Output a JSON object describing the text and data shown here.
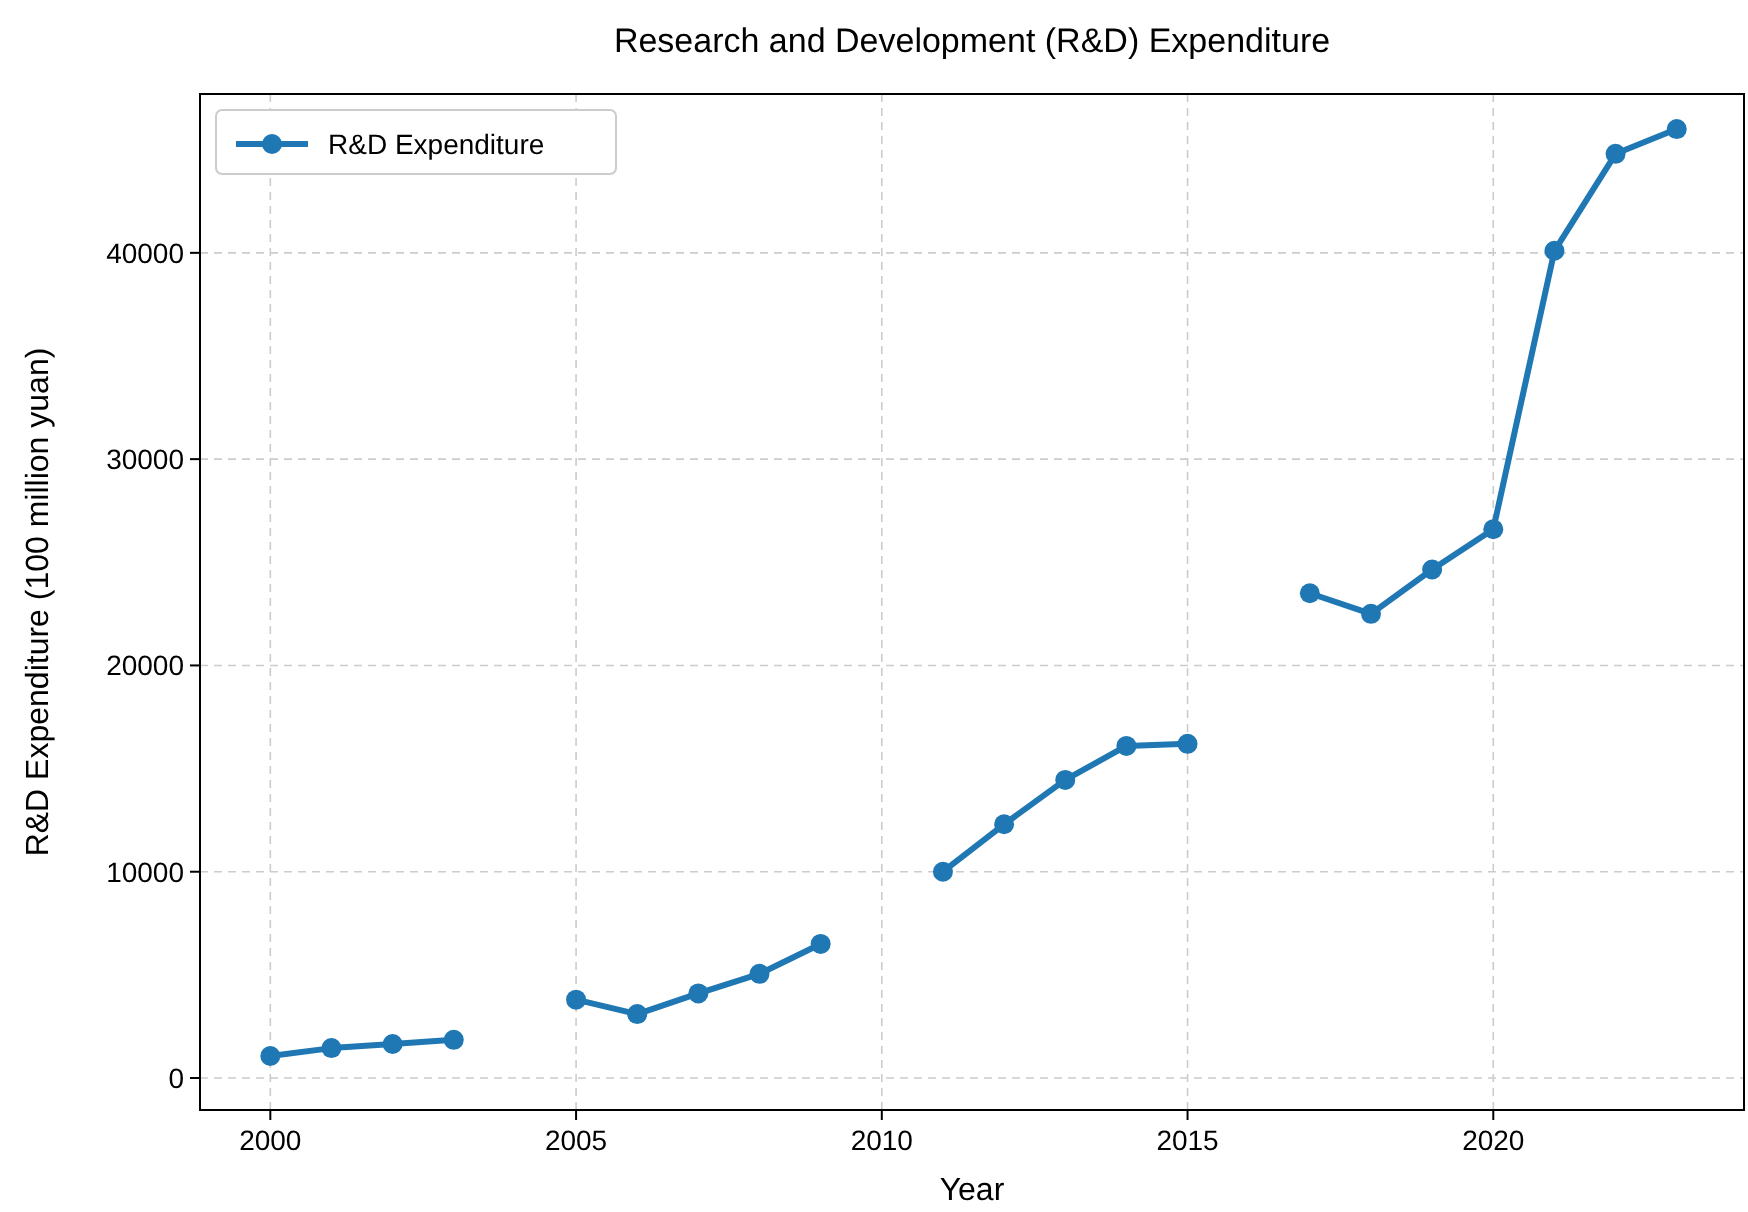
{
  "chart_data": {
    "type": "line",
    "title": "Research and Development (R&D) Expenditure",
    "xlabel": "Year",
    "ylabel": "R&D Expenditure (100 million yuan)",
    "x": [
      2000,
      2001,
      2002,
      2003,
      2004,
      2005,
      2006,
      2007,
      2008,
      2009,
      2010,
      2011,
      2012,
      2013,
      2014,
      2015,
      2016,
      2017,
      2018,
      2019,
      2020,
      2021,
      2022,
      2023
    ],
    "series": [
      {
        "name": "R&D Expenditure",
        "color": "#1f77b4",
        "values": [
          1070,
          1450,
          1650,
          1850,
          null,
          3800,
          3100,
          4100,
          5050,
          6500,
          null,
          10000,
          12300,
          14450,
          16100,
          16200,
          null,
          23500,
          22500,
          24650,
          26600,
          40100,
          44800,
          46000
        ]
      }
    ],
    "xlim": [
      1998.85,
      2024.1
    ],
    "ylim": [
      -1550,
      47700
    ],
    "xticks": [
      2000,
      2005,
      2010,
      2015,
      2020
    ],
    "yticks": [
      0,
      10000,
      20000,
      30000,
      40000
    ],
    "grid": true,
    "legend": "top left",
    "marker": "circle",
    "line_style": "solid"
  }
}
